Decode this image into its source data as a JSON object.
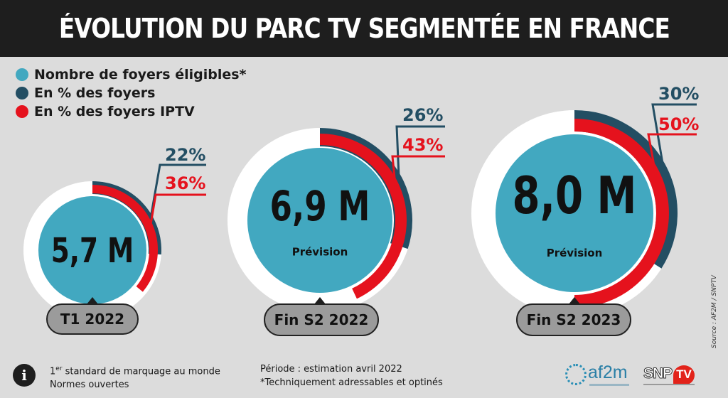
{
  "title": "ÉVOLUTION DU PARC TV SEGMENTÉE EN FRANCE",
  "colors": {
    "foyers_eligibles": "#42a8c0",
    "pct_foyers": "#234e63",
    "pct_foyers_iptv": "#e5121d",
    "ring_background": "#ffffff",
    "label_pill": "#9b9b9b",
    "title_bar": "#1e1e1e",
    "page_background": "#dcdcdc"
  },
  "legend": [
    {
      "label": "Nombre de foyers éligibles*",
      "color": "#42a8c0"
    },
    {
      "label": "En % des foyers",
      "color": "#234e63"
    },
    {
      "label": "En % des foyers IPTV",
      "color": "#e5121d"
    }
  ],
  "chart_data": {
    "type": "radial-bar",
    "categories": [
      "T1 2022",
      "Fin S2 2022",
      "Fin S2 2023"
    ],
    "series": [
      {
        "name": "Nombre de foyers éligibles*",
        "unit": "M",
        "values": [
          5.7,
          6.9,
          8.0
        ],
        "labels": [
          "5,7 M",
          "6,9 M",
          "8,0 M"
        ]
      },
      {
        "name": "En % des foyers",
        "unit": "%",
        "values": [
          22,
          26,
          30
        ],
        "labels": [
          "22%",
          "26%",
          "30%"
        ]
      },
      {
        "name": "En % des foyers IPTV",
        "unit": "%",
        "values": [
          36,
          43,
          50
        ],
        "labels": [
          "36%",
          "43%",
          "50%"
        ]
      }
    ],
    "sublabels": [
      "",
      "Prévision",
      "Prévision"
    ]
  },
  "footer": {
    "line1_prefix": "1",
    "line1_sup": "er",
    "line1_rest": " standard de marquage au monde",
    "line2": "Normes ouvertes",
    "periode": "Période : estimation avril 2022",
    "note": "*Techniquement adressables et optinés",
    "info_icon": "i",
    "source": "Source : AF2M / SNPTV",
    "logo_af2m": "af2m",
    "logo_snptv_left": "SNP",
    "logo_snptv_right": "TV"
  }
}
